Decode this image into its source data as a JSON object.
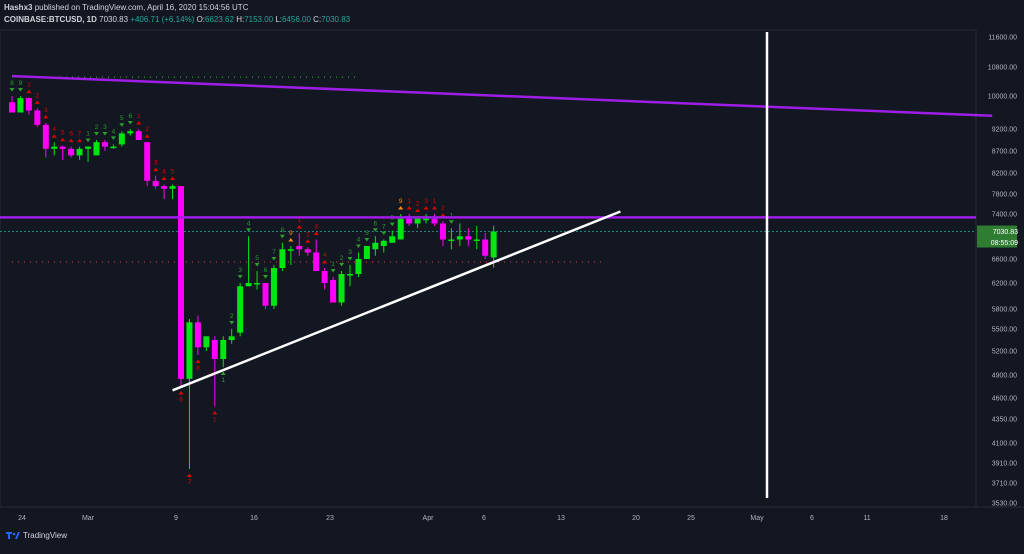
{
  "header": {
    "author": "Hashx3",
    "published": "published on TradingView.com, April 16, 2020 15:04:56 UTC",
    "symbol": "COINBASE:BTCUSD, 1D",
    "last": "7030.83",
    "change": "+406.71 (+6.14%)",
    "o_label": "O:",
    "o_value": "6623.62",
    "h_label": "H:",
    "h_value": "7153.00",
    "l_label": "L:",
    "l_value": "6456.00",
    "c_label": "C:",
    "c_value": "7030.83"
  },
  "branding": {
    "logo_text": "TradingView"
  },
  "colors": {
    "background": "#131722",
    "up": "#00e612",
    "down": "#ff00ff",
    "purple_line": "#9f1ee6",
    "trendline": "#ffffff",
    "price_tag": "#2e7d32",
    "setup_green": "#2e9e2e",
    "setup_red": "#e00000",
    "setup_orange": "#ff8c1a"
  },
  "chart_data": {
    "type": "candlestick",
    "y_ticks": [
      "11600.00",
      "10800.00",
      "10000.00",
      "9200.00",
      "8700.00",
      "8200.00",
      "7800.00",
      "7400.00",
      "7000.00",
      "6600.00",
      "6200.00",
      "5800.00",
      "5500.00",
      "5200.00",
      "4900.00",
      "4600.00",
      "4350.00",
      "4100.00",
      "3910.00",
      "3710.00",
      "3530.00"
    ],
    "x_ticks": [
      "24",
      "Mar",
      "9",
      "16",
      "23",
      "Apr",
      "6",
      "13",
      "20",
      "25",
      "May",
      "6",
      "11",
      "18"
    ],
    "price_tag": "7030.83",
    "countdown_tag": "08:55:09",
    "candles": [
      {
        "o": 9850,
        "h": 10000,
        "l": 9600,
        "c": 9600
      },
      {
        "o": 9600,
        "h": 10000,
        "l": 9600,
        "c": 9950
      },
      {
        "o": 9950,
        "h": 9960,
        "l": 9550,
        "c": 9650
      },
      {
        "o": 9650,
        "h": 9700,
        "l": 9250,
        "c": 9300
      },
      {
        "o": 9300,
        "h": 9350,
        "l": 8550,
        "c": 8750
      },
      {
        "o": 8750,
        "h": 8900,
        "l": 8600,
        "c": 8800
      },
      {
        "o": 8800,
        "h": 8820,
        "l": 8500,
        "c": 8750
      },
      {
        "o": 8750,
        "h": 8800,
        "l": 8550,
        "c": 8600
      },
      {
        "o": 8600,
        "h": 8800,
        "l": 8500,
        "c": 8750
      },
      {
        "o": 8750,
        "h": 8800,
        "l": 8450,
        "c": 8800
      },
      {
        "o": 8600,
        "h": 8950,
        "l": 8600,
        "c": 8900
      },
      {
        "o": 8900,
        "h": 8950,
        "l": 8700,
        "c": 8800
      },
      {
        "o": 8800,
        "h": 8850,
        "l": 8750,
        "c": 8800
      },
      {
        "o": 8850,
        "h": 9150,
        "l": 8800,
        "c": 9100
      },
      {
        "o": 9100,
        "h": 9200,
        "l": 9050,
        "c": 9150
      },
      {
        "o": 9150,
        "h": 9200,
        "l": 8950,
        "c": 8950
      },
      {
        "o": 8900,
        "h": 8900,
        "l": 7950,
        "c": 8050
      },
      {
        "o": 8050,
        "h": 8150,
        "l": 7900,
        "c": 7950
      },
      {
        "o": 7950,
        "h": 7980,
        "l": 7700,
        "c": 7900
      },
      {
        "o": 7900,
        "h": 7980,
        "l": 7700,
        "c": 7950
      },
      {
        "o": 7950,
        "h": 7950,
        "l": 4750,
        "c": 4850
      },
      {
        "o": 4850,
        "h": 5650,
        "l": 3850,
        "c": 5600
      },
      {
        "o": 5600,
        "h": 5700,
        "l": 5150,
        "c": 5250
      },
      {
        "o": 5250,
        "h": 5400,
        "l": 5200,
        "c": 5400
      },
      {
        "o": 5350,
        "h": 5400,
        "l": 4500,
        "c": 5100
      },
      {
        "o": 5100,
        "h": 5400,
        "l": 5000,
        "c": 5350
      },
      {
        "o": 5350,
        "h": 5500,
        "l": 5300,
        "c": 5400
      },
      {
        "o": 5450,
        "h": 6200,
        "l": 5400,
        "c": 6150
      },
      {
        "o": 6150,
        "h": 6950,
        "l": 6150,
        "c": 6200
      },
      {
        "o": 6200,
        "h": 6400,
        "l": 6100,
        "c": 6200
      },
      {
        "o": 6200,
        "h": 6200,
        "l": 5800,
        "c": 5850
      },
      {
        "o": 5850,
        "h": 6500,
        "l": 5800,
        "c": 6450
      },
      {
        "o": 6450,
        "h": 6850,
        "l": 6400,
        "c": 6750
      },
      {
        "o": 6750,
        "h": 6800,
        "l": 6500,
        "c": 6750
      },
      {
        "o": 6800,
        "h": 7000,
        "l": 6650,
        "c": 6750
      },
      {
        "o": 6750,
        "h": 6780,
        "l": 6650,
        "c": 6700
      },
      {
        "o": 6700,
        "h": 6900,
        "l": 6400,
        "c": 6400
      },
      {
        "o": 6400,
        "h": 6450,
        "l": 6100,
        "c": 6200
      },
      {
        "o": 6250,
        "h": 6300,
        "l": 5900,
        "c": 5900
      },
      {
        "o": 5900,
        "h": 6400,
        "l": 5850,
        "c": 6350
      },
      {
        "o": 6350,
        "h": 6500,
        "l": 6150,
        "c": 6350
      },
      {
        "o": 6350,
        "h": 6700,
        "l": 6300,
        "c": 6600
      },
      {
        "o": 6600,
        "h": 6800,
        "l": 6600,
        "c": 6800
      },
      {
        "o": 6750,
        "h": 6950,
        "l": 6650,
        "c": 6850
      },
      {
        "o": 6800,
        "h": 6900,
        "l": 6700,
        "c": 6880
      },
      {
        "o": 6850,
        "h": 7050,
        "l": 6850,
        "c": 6950
      },
      {
        "o": 6900,
        "h": 7400,
        "l": 6900,
        "c": 7300
      },
      {
        "o": 7300,
        "h": 7400,
        "l": 7150,
        "c": 7200
      },
      {
        "o": 7200,
        "h": 7350,
        "l": 7100,
        "c": 7300
      },
      {
        "o": 7300,
        "h": 7400,
        "l": 7200,
        "c": 7300
      },
      {
        "o": 7300,
        "h": 7400,
        "l": 7150,
        "c": 7200
      },
      {
        "o": 7200,
        "h": 7250,
        "l": 6800,
        "c": 6900
      },
      {
        "o": 6900,
        "h": 7100,
        "l": 6750,
        "c": 6900
      },
      {
        "o": 6900,
        "h": 7200,
        "l": 6800,
        "c": 6950
      },
      {
        "o": 6950,
        "h": 7100,
        "l": 6800,
        "c": 6900
      },
      {
        "o": 6900,
        "h": 7150,
        "l": 6750,
        "c": 6900
      },
      {
        "o": 6900,
        "h": 7000,
        "l": 6600,
        "c": 6650
      },
      {
        "o": 6623.62,
        "h": 7153,
        "l": 6456,
        "c": 7030.83
      }
    ],
    "setup_labels": [
      {
        "i": 0,
        "t": "8",
        "pos": "above",
        "color": "green"
      },
      {
        "i": 1,
        "t": "9",
        "pos": "above",
        "color": "green"
      },
      {
        "i": 2,
        "t": "1",
        "pos": "above",
        "color": "red"
      },
      {
        "i": 3,
        "t": "2",
        "pos": "above",
        "color": "red"
      },
      {
        "i": 4,
        "t": "3",
        "pos": "above",
        "color": "red"
      },
      {
        "i": 5,
        "t": "4",
        "pos": "above",
        "color": "red"
      },
      {
        "i": 6,
        "t": "5",
        "pos": "above",
        "color": "red"
      },
      {
        "i": 7,
        "t": "6",
        "pos": "above",
        "color": "red"
      },
      {
        "i": 8,
        "t": "7",
        "pos": "above",
        "color": "red"
      },
      {
        "i": 9,
        "t": "1",
        "pos": "above",
        "color": "green"
      },
      {
        "i": 10,
        "t": "2",
        "pos": "above",
        "color": "green"
      },
      {
        "i": 11,
        "t": "3",
        "pos": "above",
        "color": "green"
      },
      {
        "i": 12,
        "t": "4",
        "pos": "above",
        "color": "green"
      },
      {
        "i": 13,
        "t": "5",
        "pos": "above",
        "color": "green"
      },
      {
        "i": 14,
        "t": "6",
        "pos": "above",
        "color": "green"
      },
      {
        "i": 15,
        "t": "1",
        "pos": "above",
        "color": "red"
      },
      {
        "i": 16,
        "t": "2",
        "pos": "above",
        "color": "red"
      },
      {
        "i": 17,
        "t": "3",
        "pos": "above",
        "color": "red"
      },
      {
        "i": 18,
        "t": "4",
        "pos": "above",
        "color": "red"
      },
      {
        "i": 19,
        "t": "5",
        "pos": "above",
        "color": "red"
      },
      {
        "i": 20,
        "t": "6",
        "pos": "below",
        "color": "red"
      },
      {
        "i": 21,
        "t": "7",
        "pos": "below",
        "color": "red"
      },
      {
        "i": 22,
        "t": "8",
        "pos": "below",
        "color": "red"
      },
      {
        "i": 24,
        "t": "1",
        "pos": "below",
        "color": "red"
      },
      {
        "i": 25,
        "t": "1",
        "pos": "below",
        "color": "green"
      },
      {
        "i": 26,
        "t": "2",
        "pos": "above",
        "color": "green"
      },
      {
        "i": 27,
        "t": "3",
        "pos": "above",
        "color": "green"
      },
      {
        "i": 28,
        "t": "4",
        "pos": "above",
        "color": "green"
      },
      {
        "i": 29,
        "t": "5",
        "pos": "above",
        "color": "green"
      },
      {
        "i": 30,
        "t": "6",
        "pos": "above",
        "color": "green"
      },
      {
        "i": 31,
        "t": "7",
        "pos": "above",
        "color": "green"
      },
      {
        "i": 32,
        "t": "8",
        "pos": "above",
        "color": "green"
      },
      {
        "i": 33,
        "t": "9",
        "pos": "above",
        "color": "orange"
      },
      {
        "i": 34,
        "t": "1",
        "pos": "above",
        "color": "red"
      },
      {
        "i": 35,
        "t": "2",
        "pos": "above",
        "color": "red"
      },
      {
        "i": 36,
        "t": "3",
        "pos": "above",
        "color": "red"
      },
      {
        "i": 37,
        "t": "4",
        "pos": "above",
        "color": "red"
      },
      {
        "i": 38,
        "t": "1",
        "pos": "above",
        "color": "green"
      },
      {
        "i": 39,
        "t": "2",
        "pos": "above",
        "color": "green"
      },
      {
        "i": 40,
        "t": "3",
        "pos": "above",
        "color": "green"
      },
      {
        "i": 41,
        "t": "4",
        "pos": "above",
        "color": "green"
      },
      {
        "i": 42,
        "t": "5",
        "pos": "above",
        "color": "green"
      },
      {
        "i": 43,
        "t": "6",
        "pos": "above",
        "color": "green"
      },
      {
        "i": 44,
        "t": "7",
        "pos": "above",
        "color": "green"
      },
      {
        "i": 45,
        "t": "8",
        "pos": "above",
        "color": "green"
      },
      {
        "i": 46,
        "t": "9",
        "pos": "above",
        "color": "orange"
      },
      {
        "i": 47,
        "t": "1",
        "pos": "above",
        "color": "red"
      },
      {
        "i": 48,
        "t": "2",
        "pos": "above",
        "color": "red"
      },
      {
        "i": 49,
        "t": "3",
        "pos": "above",
        "color": "red"
      },
      {
        "i": 50,
        "t": "1",
        "pos": "above",
        "color": "red"
      },
      {
        "i": 51,
        "t": "2",
        "pos": "above",
        "color": "red"
      },
      {
        "i": 52,
        "t": "1",
        "pos": "above",
        "color": "green"
      }
    ],
    "drawings": {
      "descending_resistance": {
        "from": {
          "i": 0,
          "p": 10550
        },
        "to": {
          "i": 116,
          "p": 9520
        }
      },
      "horizontal_level": 7330,
      "ascending_support": {
        "from": {
          "i": 19,
          "p": 4700
        },
        "to": {
          "i": 72,
          "p": 7450
        }
      },
      "vertical_marker_date": "May"
    }
  }
}
